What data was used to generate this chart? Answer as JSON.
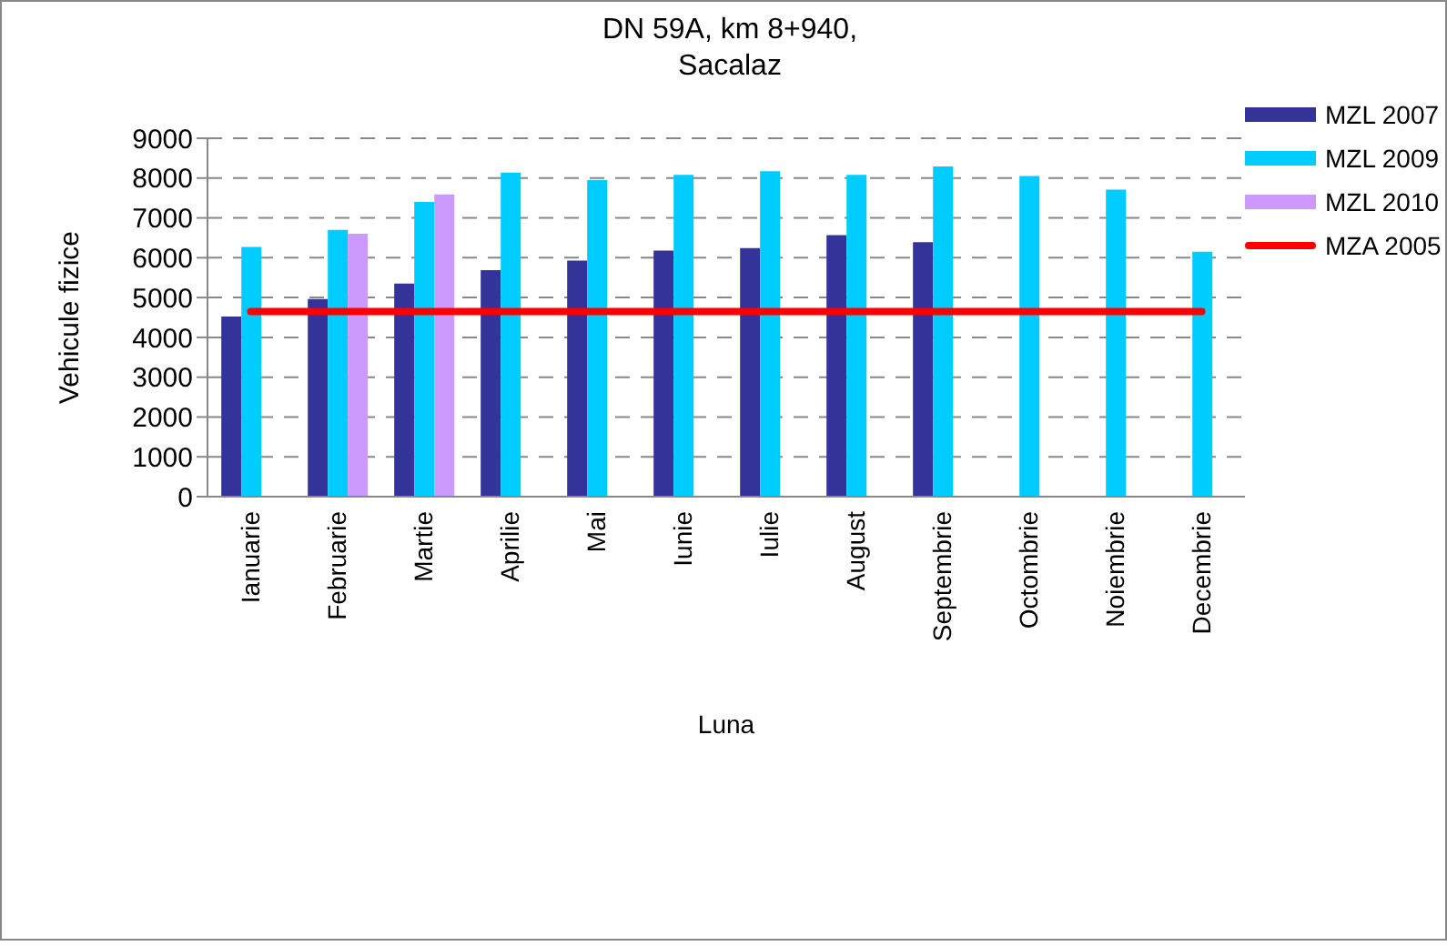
{
  "chart_data": {
    "type": "bar",
    "title": "DN 59A, km 8+940, Sacalaz",
    "xlabel": "Luna",
    "ylabel": "Vehicule fizice",
    "categories": [
      "Ianuarie",
      "Februarie",
      "Martie",
      "Aprilie",
      "Mai",
      "Iunie",
      "Iulie",
      "August",
      "Septembrie",
      "Octombrie",
      "Noiembrie",
      "Decembrie"
    ],
    "series": [
      {
        "name": "MZL 2007",
        "color": "#333399",
        "values": [
          4520,
          4960,
          5350,
          5690,
          5930,
          6180,
          6240,
          6570,
          6390,
          null,
          null,
          null
        ]
      },
      {
        "name": "MZL 2009",
        "color": "#00ccff",
        "values": [
          6270,
          6700,
          7400,
          8140,
          7950,
          8080,
          8170,
          8080,
          8290,
          8050,
          7710,
          6150
        ]
      },
      {
        "name": "MZL 2010",
        "color": "#cc99ff",
        "values": [
          null,
          6600,
          7590,
          null,
          null,
          null,
          null,
          null,
          null,
          null,
          null,
          null
        ]
      },
      {
        "name": "MZA 2005",
        "type": "line",
        "color": "#ff0000",
        "values": [
          4650,
          4650,
          4650,
          4650,
          4650,
          4650,
          4650,
          4650,
          4650,
          4650,
          4650,
          4650
        ]
      }
    ],
    "ylim": [
      0,
      9000
    ],
    "yticks": [
      0,
      1000,
      2000,
      3000,
      4000,
      5000,
      6000,
      7000,
      8000,
      9000
    ],
    "grid": "y",
    "legend": "top right"
  }
}
